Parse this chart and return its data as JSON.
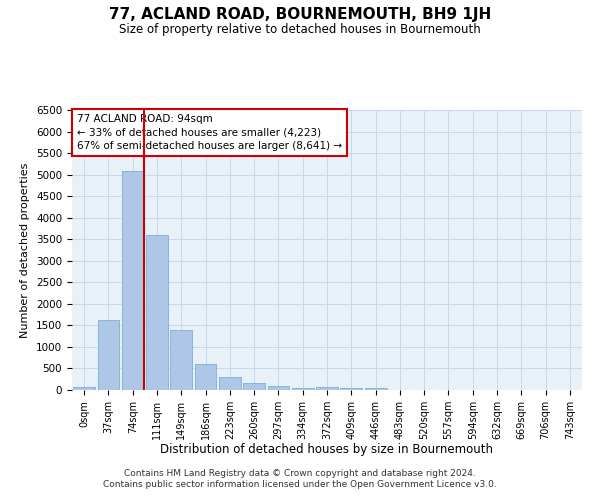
{
  "title": "77, ACLAND ROAD, BOURNEMOUTH, BH9 1JH",
  "subtitle": "Size of property relative to detached houses in Bournemouth",
  "xlabel": "Distribution of detached houses by size in Bournemouth",
  "ylabel": "Number of detached properties",
  "footer_line1": "Contains HM Land Registry data © Crown copyright and database right 2024.",
  "footer_line2": "Contains public sector information licensed under the Open Government Licence v3.0.",
  "bar_labels": [
    "0sqm",
    "37sqm",
    "74sqm",
    "111sqm",
    "149sqm",
    "186sqm",
    "223sqm",
    "260sqm",
    "297sqm",
    "334sqm",
    "372sqm",
    "409sqm",
    "446sqm",
    "483sqm",
    "520sqm",
    "557sqm",
    "594sqm",
    "632sqm",
    "669sqm",
    "706sqm",
    "743sqm"
  ],
  "bar_values": [
    75,
    1620,
    5080,
    3600,
    1400,
    600,
    310,
    155,
    90,
    45,
    60,
    45,
    55,
    0,
    0,
    0,
    0,
    0,
    0,
    0,
    0
  ],
  "bar_color": "#aec6e8",
  "bar_edge_color": "#7aafd4",
  "grid_color": "#c8d8ea",
  "background_color": "#e8f0f8",
  "vline_color": "#cc0000",
  "annotation_text": "77 ACLAND ROAD: 94sqm\n← 33% of detached houses are smaller (4,223)\n67% of semi-detached houses are larger (8,641) →",
  "annotation_box_color": "#ffffff",
  "annotation_box_edge": "#cc0000",
  "ylim": [
    0,
    6500
  ],
  "yticks": [
    0,
    500,
    1000,
    1500,
    2000,
    2500,
    3000,
    3500,
    4000,
    4500,
    5000,
    5500,
    6000,
    6500
  ]
}
